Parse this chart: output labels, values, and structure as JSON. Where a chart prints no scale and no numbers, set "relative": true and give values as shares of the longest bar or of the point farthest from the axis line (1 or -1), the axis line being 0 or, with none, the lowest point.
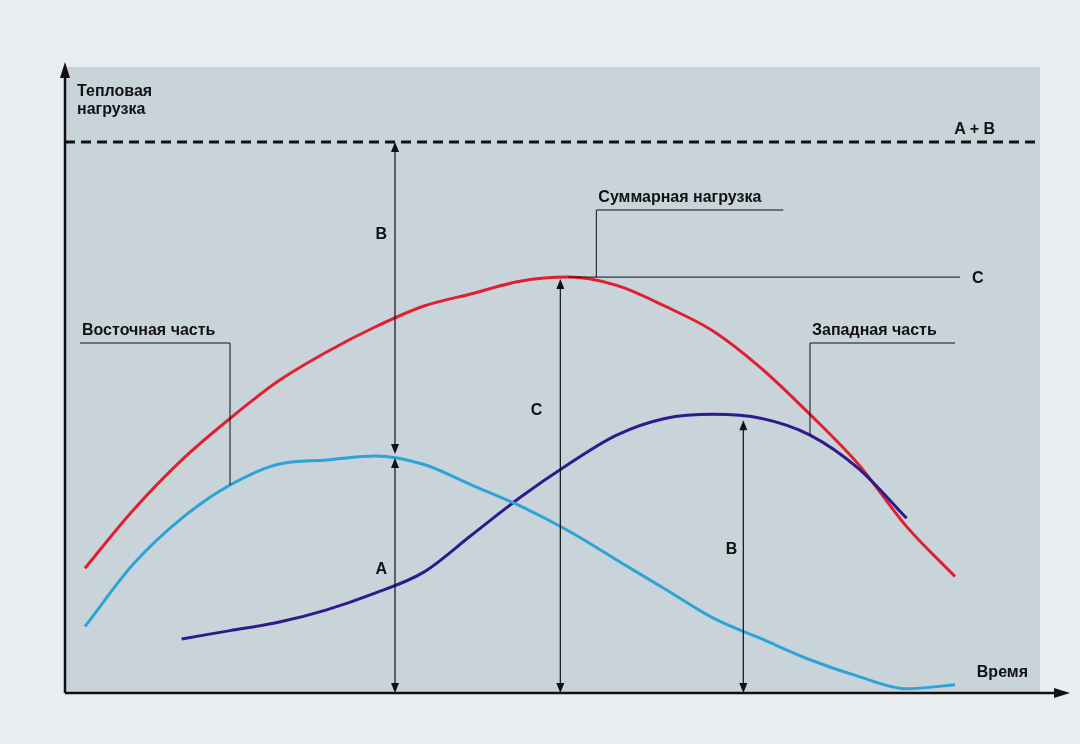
{
  "chart_data": {
    "type": "line",
    "relative": true,
    "xlabel": "Время",
    "legend": false,
    "marker": "none",
    "categories": [
      null,
      null,
      null,
      null,
      null,
      null,
      null,
      null,
      null,
      null,
      null,
      null,
      null,
      null,
      null,
      null,
      null,
      null,
      null
    ],
    "series": [
      {
        "name": "Восточная часть",
        "color": "#2ea3d8",
        "values": [
          0.16,
          0.31,
          0.42,
          0.5,
          0.55,
          0.56,
          0.57,
          0.55,
          0.5,
          0.45,
          0.39,
          0.32,
          0.25,
          0.18,
          0.13,
          0.08,
          0.04,
          0.01,
          0.02
        ]
      },
      {
        "name": "Западная часть",
        "color": "#2e1a8c",
        "values": [
          null,
          null,
          0.13,
          0.15,
          0.17,
          0.2,
          0.24,
          0.29,
          0.38,
          0.47,
          0.55,
          0.62,
          0.66,
          0.67,
          0.66,
          0.62,
          0.54,
          0.42,
          null
        ]
      },
      {
        "name": "Суммарная нагрузка",
        "color": "#e0202e",
        "values": [
          0.3,
          0.44,
          0.56,
          0.66,
          0.75,
          0.82,
          0.88,
          0.93,
          0.96,
          0.99,
          1.0,
          0.98,
          0.93,
          0.87,
          0.78,
          0.67,
          0.55,
          0.4,
          0.28
        ]
      }
    ],
    "ref_lines": [
      {
        "axis": "y",
        "value": 1.325,
        "label": "A + B",
        "line_style": "dashed",
        "color": "#111111"
      },
      {
        "axis": "y",
        "value": 1.0,
        "label": "C",
        "line_style": "solid",
        "color": "#111111"
      }
    ],
    "annotations": [
      "B",
      "A",
      "C",
      "B",
      "Тепловая нагрузка"
    ]
  }
}
